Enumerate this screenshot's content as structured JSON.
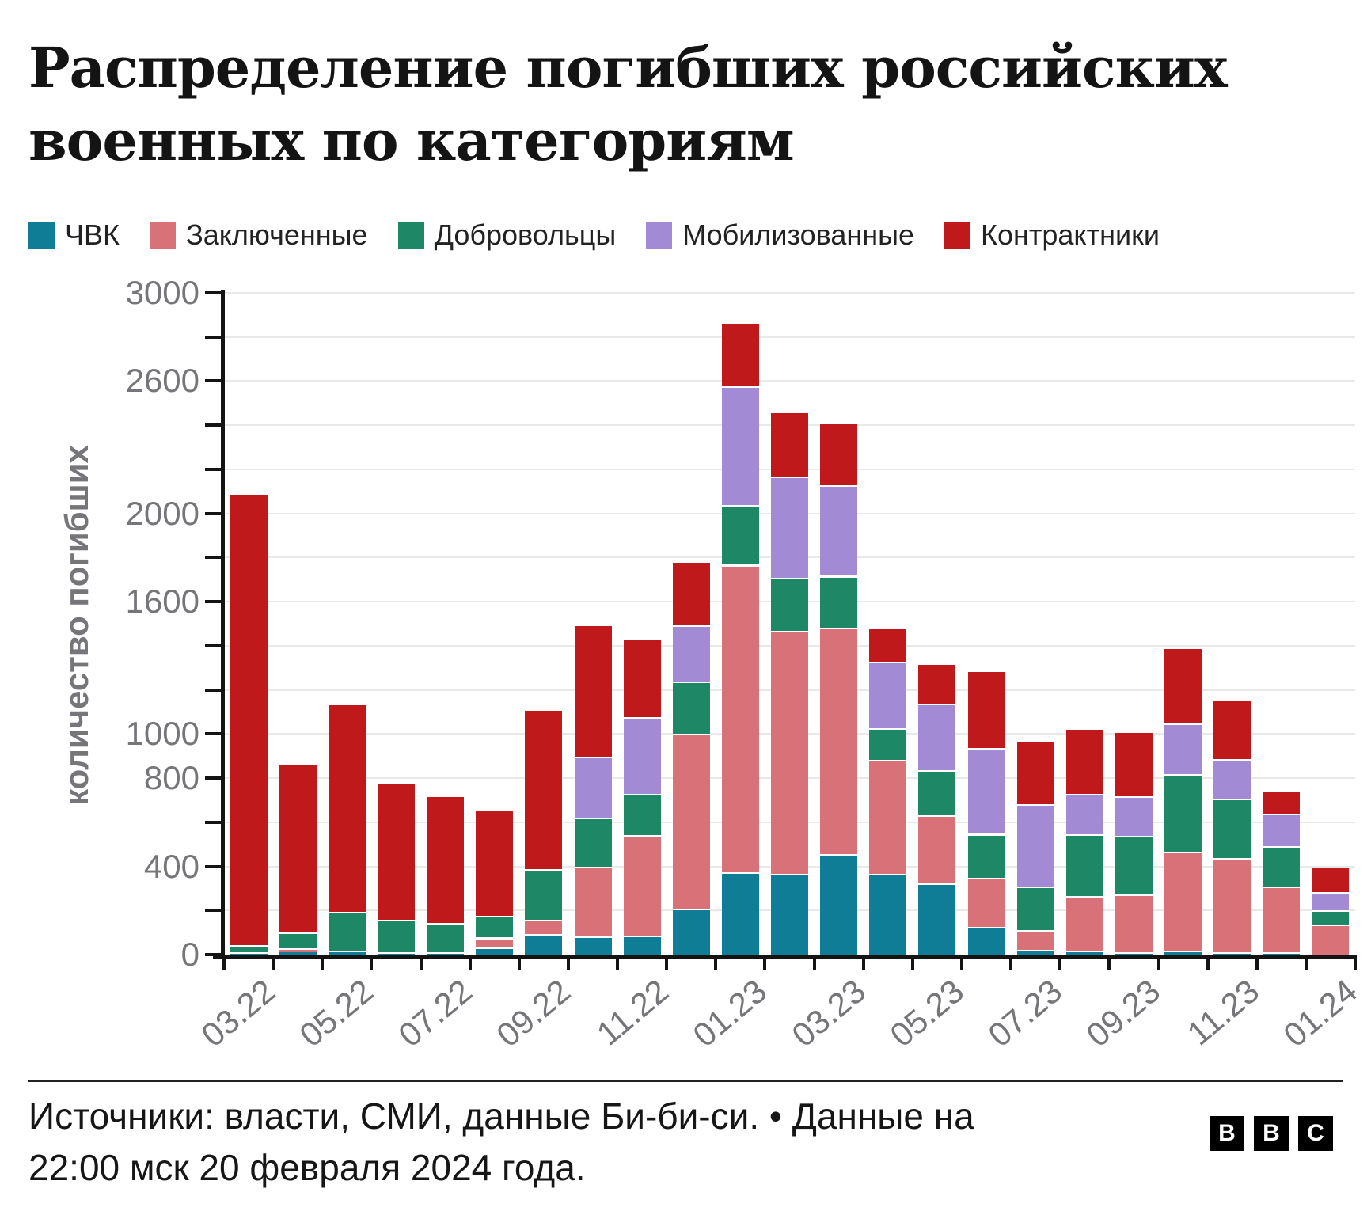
{
  "title": "Распределение погибших российских военных по категориям",
  "y_axis": {
    "title": "количество погибших",
    "labeled_ticks": [
      3000,
      2600,
      2000,
      1600,
      1000,
      800,
      400,
      0
    ],
    "minor_tick_step": 200,
    "max": 3000
  },
  "footer": {
    "source_line1": "Источники: власти, СМИ, данные Би-би-си. • Данные на",
    "source_line2": "22:00 мск 20 февраля 2024 года.",
    "logo_letters": [
      "B",
      "B",
      "C"
    ]
  },
  "colors": {
    "background": "#ffffff",
    "grid": "#e9e9e9",
    "axis": "#141414",
    "tick_label": "#75757a",
    "title_text": "#141414",
    "footer_text": "#161616"
  },
  "chart_data": {
    "type": "bar",
    "subtype": "stacked-vertical",
    "title": "Распределение погибших российских военных по категориям",
    "xlabel": "",
    "ylabel": "количество погибших",
    "ylim": [
      0,
      3000
    ],
    "grid": true,
    "legend_position": "top",
    "categories": [
      "03.22",
      "04.22",
      "05.22",
      "06.22",
      "07.22",
      "08.22",
      "09.22",
      "10.22",
      "11.22",
      "12.22",
      "01.23",
      "02.23",
      "03.23",
      "04.23",
      "05.23",
      "06.23",
      "07.23",
      "08.23",
      "09.23",
      "10.23",
      "11.23",
      "12.23",
      "01.24"
    ],
    "x_tick_labels": [
      "03.22",
      "05.22",
      "07.22",
      "09.22",
      "11.22",
      "01.23",
      "03.23",
      "05.23",
      "07.23",
      "09.23",
      "11.23",
      "01.24"
    ],
    "x_label_every": 2,
    "y_tick_labels": [
      "3000",
      "2600",
      "2000",
      "1600",
      "1000",
      "800",
      "400",
      "0"
    ],
    "series": [
      {
        "name": "ЧВК",
        "color": "#0e7d95",
        "values": [
          5,
          10,
          10,
          5,
          5,
          25,
          85,
          75,
          80,
          200,
          365,
          360,
          450,
          360,
          315,
          120,
          15,
          10,
          5,
          10,
          5,
          5,
          0
        ]
      },
      {
        "name": "Заключенные",
        "color": "#d97179",
        "values": [
          0,
          10,
          0,
          0,
          0,
          45,
          65,
          315,
          455,
          795,
          1395,
          1100,
          1025,
          515,
          310,
          220,
          90,
          250,
          260,
          450,
          425,
          295,
          130
        ]
      },
      {
        "name": "Добровольцы",
        "color": "#1e8765",
        "values": [
          30,
          75,
          175,
          145,
          130,
          100,
          230,
          225,
          185,
          235,
          270,
          240,
          235,
          145,
          205,
          200,
          195,
          280,
          265,
          350,
          270,
          185,
          65
        ]
      },
      {
        "name": "Мобилизованные",
        "color": "#a28bd4",
        "values": [
          0,
          0,
          0,
          0,
          0,
          0,
          0,
          275,
          350,
          255,
          540,
          460,
          410,
          300,
          300,
          390,
          375,
          180,
          180,
          230,
          180,
          145,
          80
        ]
      },
      {
        "name": "Контрактники",
        "color": "#c0191c",
        "values": [
          2045,
          765,
          945,
          625,
          580,
          480,
          725,
          600,
          355,
          290,
          290,
          295,
          285,
          155,
          185,
          350,
          290,
          300,
          295,
          345,
          270,
          110,
          120
        ]
      }
    ]
  }
}
